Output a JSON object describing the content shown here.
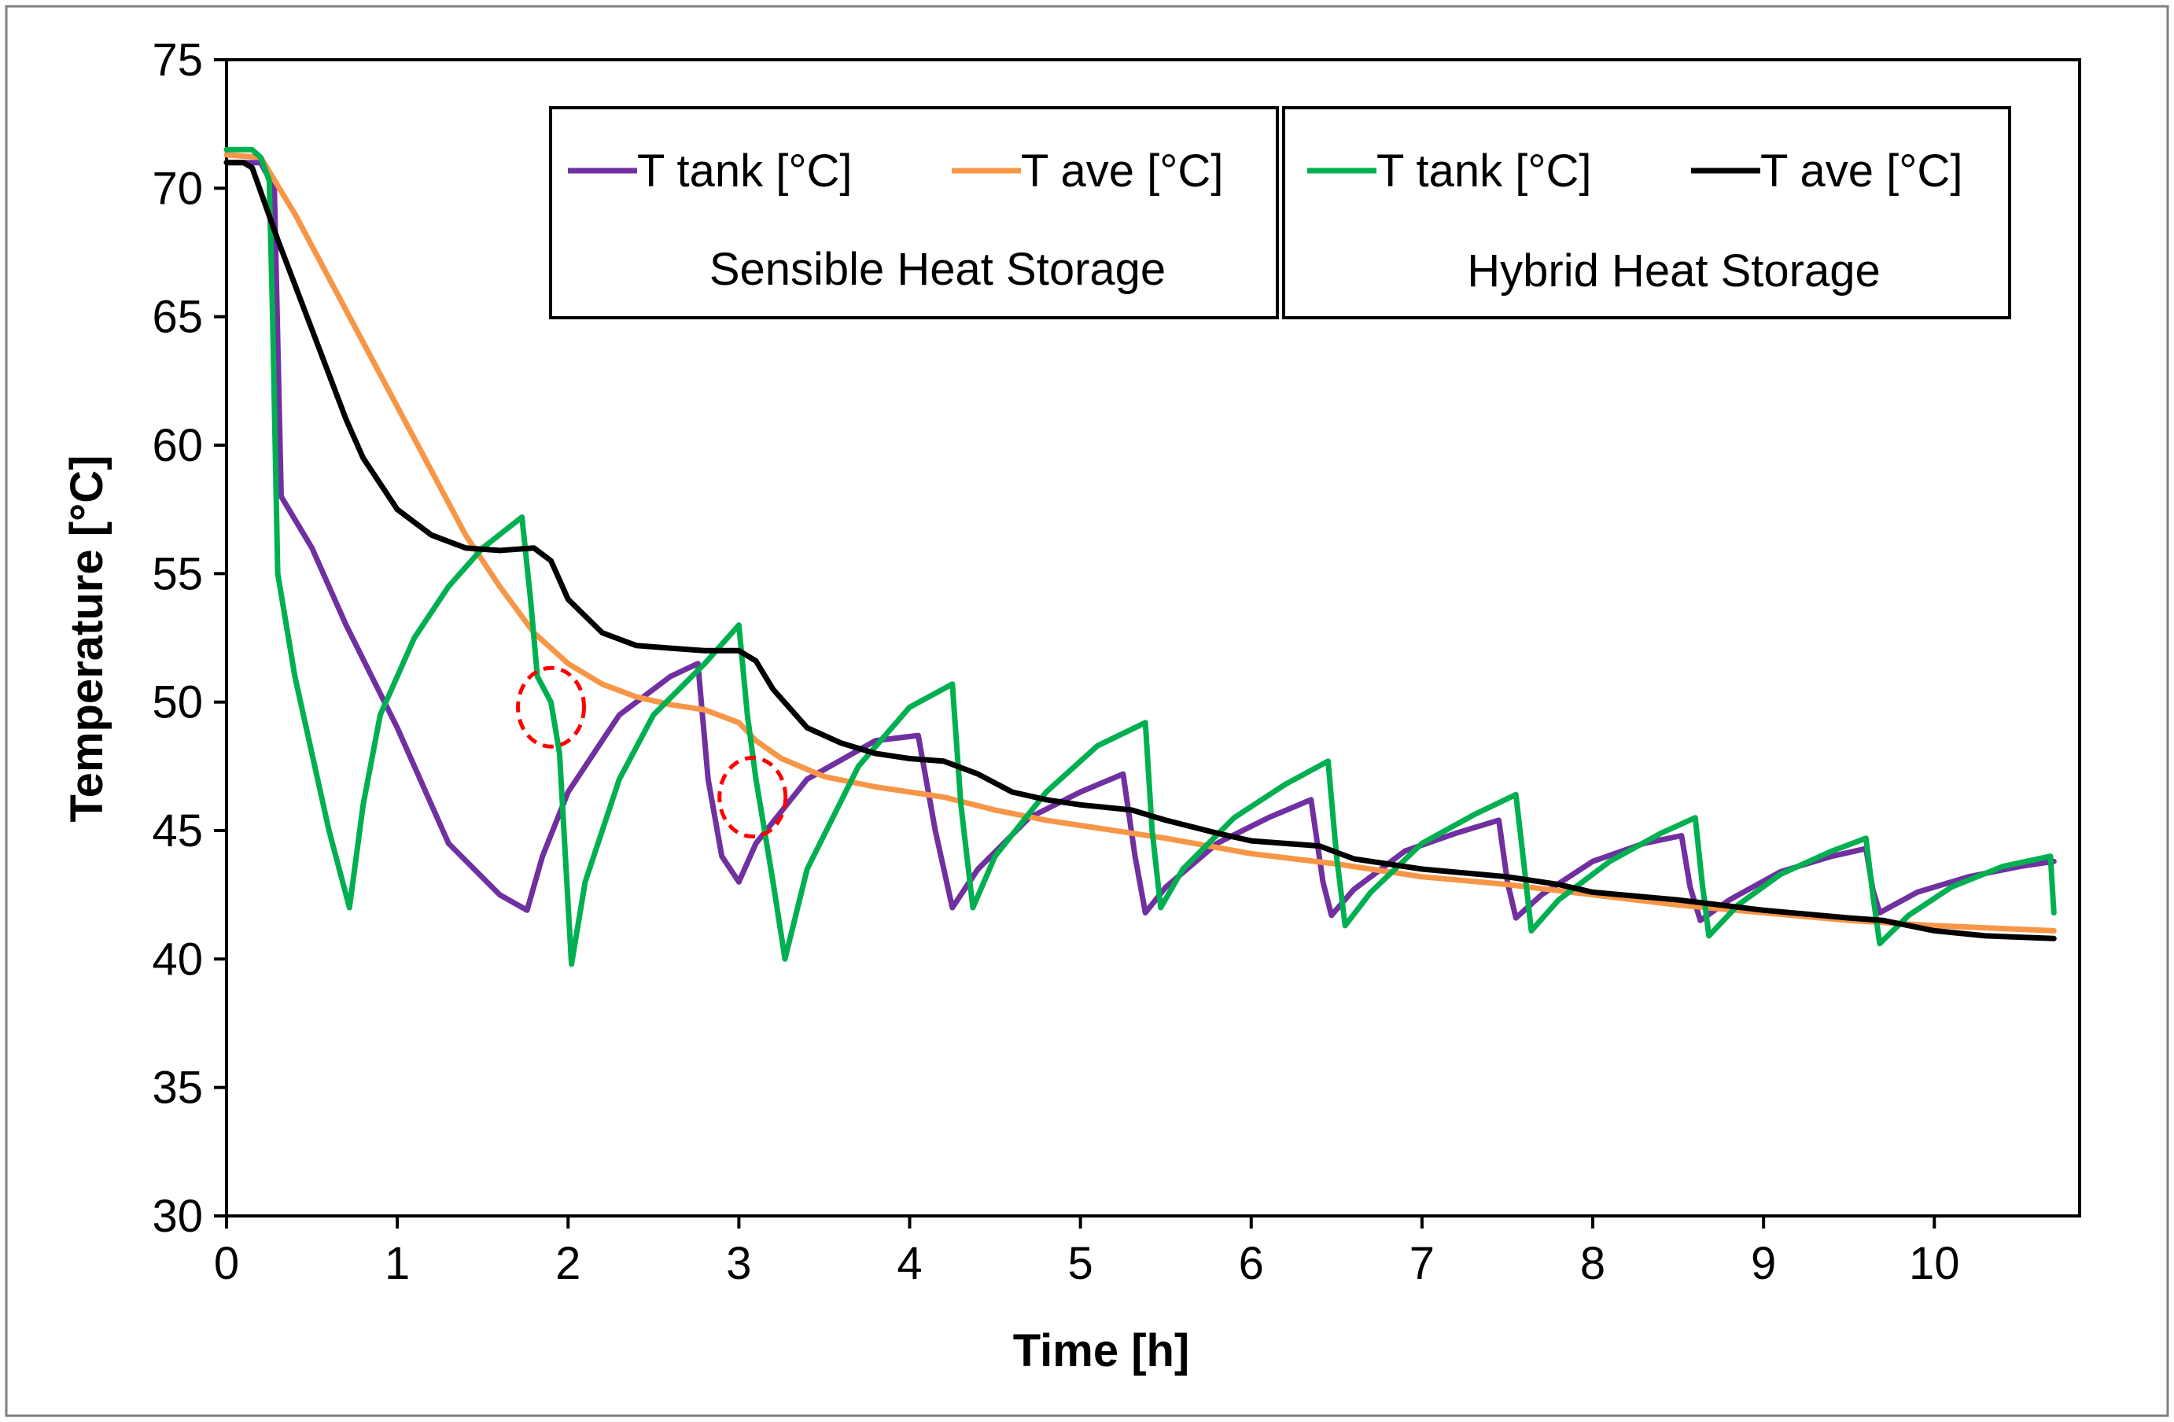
{
  "chart_data": {
    "type": "line",
    "xlabel": "Time [h]",
    "ylabel": "Temperature [°C]",
    "xlim": [
      0,
      10.8
    ],
    "ylim": [
      30,
      75
    ],
    "xticks": [
      0,
      1,
      2,
      3,
      4,
      5,
      6,
      7,
      8,
      9,
      10
    ],
    "yticks": [
      30,
      35,
      40,
      45,
      50,
      55,
      60,
      65,
      70,
      75
    ],
    "legend_groups": [
      {
        "caption": "Sensible Heat Storage",
        "entries": [
          "T tank  [°C]",
          "T ave [°C]"
        ]
      },
      {
        "caption": "Hybrid Heat Storage",
        "entries": [
          "T tank  [°C]",
          "T ave [°C]"
        ]
      }
    ],
    "series": [
      {
        "name": "T tank  [°C]",
        "group": "Sensible Heat Storage",
        "color": "#7030a0",
        "points": [
          [
            0,
            71
          ],
          [
            0.2,
            71
          ],
          [
            0.28,
            70
          ],
          [
            0.32,
            58
          ],
          [
            0.5,
            56
          ],
          [
            0.7,
            53
          ],
          [
            1.0,
            49
          ],
          [
            1.3,
            44.5
          ],
          [
            1.6,
            42.5
          ],
          [
            1.76,
            41.9
          ],
          [
            1.85,
            44
          ],
          [
            2.0,
            46.5
          ],
          [
            2.3,
            49.5
          ],
          [
            2.6,
            51
          ],
          [
            2.76,
            51.5
          ],
          [
            2.82,
            47
          ],
          [
            2.9,
            44
          ],
          [
            3.0,
            43
          ],
          [
            3.1,
            44.5
          ],
          [
            3.4,
            47
          ],
          [
            3.8,
            48.5
          ],
          [
            4.05,
            48.7
          ],
          [
            4.15,
            45
          ],
          [
            4.25,
            42
          ],
          [
            4.4,
            43.5
          ],
          [
            4.7,
            45.5
          ],
          [
            5.0,
            46.5
          ],
          [
            5.25,
            47.2
          ],
          [
            5.32,
            44
          ],
          [
            5.38,
            41.8
          ],
          [
            5.5,
            42.8
          ],
          [
            5.8,
            44.5
          ],
          [
            6.1,
            45.5
          ],
          [
            6.35,
            46.2
          ],
          [
            6.42,
            43
          ],
          [
            6.47,
            41.7
          ],
          [
            6.6,
            42.7
          ],
          [
            6.9,
            44.2
          ],
          [
            7.2,
            44.9
          ],
          [
            7.45,
            45.4
          ],
          [
            7.5,
            43
          ],
          [
            7.55,
            41.6
          ],
          [
            7.7,
            42.5
          ],
          [
            8.0,
            43.8
          ],
          [
            8.3,
            44.5
          ],
          [
            8.52,
            44.8
          ],
          [
            8.57,
            42.8
          ],
          [
            8.63,
            41.5
          ],
          [
            8.8,
            42.3
          ],
          [
            9.1,
            43.4
          ],
          [
            9.4,
            44.0
          ],
          [
            9.6,
            44.3
          ],
          [
            9.64,
            42.7
          ],
          [
            9.68,
            41.8
          ],
          [
            9.9,
            42.6
          ],
          [
            10.2,
            43.2
          ],
          [
            10.5,
            43.6
          ],
          [
            10.7,
            43.8
          ]
        ]
      },
      {
        "name": "T ave [°C]",
        "group": "Sensible Heat Storage",
        "color": "#f79646",
        "points": [
          [
            0,
            71.3
          ],
          [
            0.2,
            71.2
          ],
          [
            0.4,
            69
          ],
          [
            0.6,
            66.5
          ],
          [
            0.8,
            64
          ],
          [
            1.0,
            61.5
          ],
          [
            1.2,
            59
          ],
          [
            1.4,
            56.5
          ],
          [
            1.6,
            54.5
          ],
          [
            1.8,
            52.7
          ],
          [
            2.0,
            51.5
          ],
          [
            2.2,
            50.7
          ],
          [
            2.4,
            50.2
          ],
          [
            2.6,
            49.9
          ],
          [
            2.8,
            49.7
          ],
          [
            3.0,
            49.2
          ],
          [
            3.1,
            48.5
          ],
          [
            3.25,
            47.8
          ],
          [
            3.5,
            47.1
          ],
          [
            3.8,
            46.7
          ],
          [
            4.0,
            46.5
          ],
          [
            4.2,
            46.3
          ],
          [
            4.5,
            45.8
          ],
          [
            4.8,
            45.4
          ],
          [
            5.0,
            45.2
          ],
          [
            5.5,
            44.7
          ],
          [
            6.0,
            44.1
          ],
          [
            6.5,
            43.7
          ],
          [
            7.0,
            43.2
          ],
          [
            7.5,
            42.9
          ],
          [
            8.0,
            42.5
          ],
          [
            8.5,
            42.1
          ],
          [
            9.0,
            41.8
          ],
          [
            9.5,
            41.5
          ],
          [
            10.0,
            41.3
          ],
          [
            10.7,
            41.1
          ]
        ]
      },
      {
        "name": "T tank  [°C]",
        "group": "Hybrid Heat Storage",
        "color": "#00b050",
        "points": [
          [
            0,
            71.5
          ],
          [
            0.15,
            71.5
          ],
          [
            0.2,
            71.2
          ],
          [
            0.25,
            70.3
          ],
          [
            0.27,
            65
          ],
          [
            0.3,
            55
          ],
          [
            0.4,
            51
          ],
          [
            0.5,
            48
          ],
          [
            0.6,
            45
          ],
          [
            0.72,
            42
          ],
          [
            0.8,
            46
          ],
          [
            0.9,
            49.5
          ],
          [
            1.1,
            52.5
          ],
          [
            1.3,
            54.5
          ],
          [
            1.5,
            56
          ],
          [
            1.73,
            57.2
          ],
          [
            1.78,
            54
          ],
          [
            1.82,
            51
          ],
          [
            1.9,
            50
          ],
          [
            1.95,
            48
          ],
          [
            2.02,
            39.8
          ],
          [
            2.1,
            43
          ],
          [
            2.3,
            47
          ],
          [
            2.5,
            49.5
          ],
          [
            2.8,
            51.5
          ],
          [
            3.0,
            53
          ],
          [
            3.05,
            49.5
          ],
          [
            3.1,
            47
          ],
          [
            3.15,
            45
          ],
          [
            3.2,
            43
          ],
          [
            3.27,
            40
          ],
          [
            3.4,
            43.5
          ],
          [
            3.7,
            47.5
          ],
          [
            4.0,
            49.8
          ],
          [
            4.25,
            50.7
          ],
          [
            4.3,
            46
          ],
          [
            4.37,
            42
          ],
          [
            4.5,
            44
          ],
          [
            4.8,
            46.5
          ],
          [
            5.1,
            48.3
          ],
          [
            5.38,
            49.2
          ],
          [
            5.42,
            45
          ],
          [
            5.47,
            42
          ],
          [
            5.6,
            43.5
          ],
          [
            5.9,
            45.5
          ],
          [
            6.2,
            46.8
          ],
          [
            6.45,
            47.7
          ],
          [
            6.5,
            44
          ],
          [
            6.55,
            41.3
          ],
          [
            6.7,
            42.6
          ],
          [
            7.0,
            44.5
          ],
          [
            7.3,
            45.6
          ],
          [
            7.55,
            46.4
          ],
          [
            7.6,
            43.5
          ],
          [
            7.64,
            41.1
          ],
          [
            7.8,
            42.3
          ],
          [
            8.1,
            43.8
          ],
          [
            8.4,
            44.9
          ],
          [
            8.6,
            45.5
          ],
          [
            8.64,
            43
          ],
          [
            8.68,
            40.9
          ],
          [
            8.85,
            42.1
          ],
          [
            9.1,
            43.3
          ],
          [
            9.4,
            44.2
          ],
          [
            9.6,
            44.7
          ],
          [
            9.64,
            42.5
          ],
          [
            9.68,
            40.6
          ],
          [
            9.85,
            41.7
          ],
          [
            10.1,
            42.8
          ],
          [
            10.4,
            43.6
          ],
          [
            10.68,
            44.0
          ],
          [
            10.7,
            41.8
          ]
        ]
      },
      {
        "name": "T ave [°C]",
        "group": "Hybrid Heat Storage",
        "color": "#000000",
        "points": [
          [
            0,
            71
          ],
          [
            0.1,
            71
          ],
          [
            0.15,
            70.8
          ],
          [
            0.3,
            68
          ],
          [
            0.5,
            64.5
          ],
          [
            0.7,
            61
          ],
          [
            0.8,
            59.5
          ],
          [
            1.0,
            57.5
          ],
          [
            1.2,
            56.5
          ],
          [
            1.4,
            56
          ],
          [
            1.6,
            55.9
          ],
          [
            1.8,
            56
          ],
          [
            1.9,
            55.5
          ],
          [
            2.0,
            54
          ],
          [
            2.2,
            52.7
          ],
          [
            2.4,
            52.2
          ],
          [
            2.6,
            52.1
          ],
          [
            2.8,
            52
          ],
          [
            3.0,
            52
          ],
          [
            3.1,
            51.6
          ],
          [
            3.2,
            50.5
          ],
          [
            3.4,
            49
          ],
          [
            3.6,
            48.4
          ],
          [
            3.8,
            48
          ],
          [
            4.0,
            47.8
          ],
          [
            4.2,
            47.7
          ],
          [
            4.4,
            47.2
          ],
          [
            4.6,
            46.5
          ],
          [
            4.8,
            46.2
          ],
          [
            5.0,
            46
          ],
          [
            5.3,
            45.8
          ],
          [
            5.5,
            45.4
          ],
          [
            5.8,
            44.9
          ],
          [
            6.0,
            44.6
          ],
          [
            6.4,
            44.4
          ],
          [
            6.6,
            43.9
          ],
          [
            7.0,
            43.5
          ],
          [
            7.5,
            43.2
          ],
          [
            7.8,
            42.9
          ],
          [
            8.0,
            42.6
          ],
          [
            8.5,
            42.3
          ],
          [
            9.0,
            41.9
          ],
          [
            9.5,
            41.6
          ],
          [
            9.7,
            41.5
          ],
          [
            10.0,
            41.1
          ],
          [
            10.3,
            40.9
          ],
          [
            10.7,
            40.8
          ]
        ]
      }
    ],
    "annotations": [
      {
        "shape": "dashed-circle",
        "color": "#ff0000",
        "x": 1.9,
        "y": 49.8
      },
      {
        "shape": "dashed-circle",
        "color": "#ff0000",
        "x": 3.08,
        "y": 46.3
      }
    ]
  }
}
